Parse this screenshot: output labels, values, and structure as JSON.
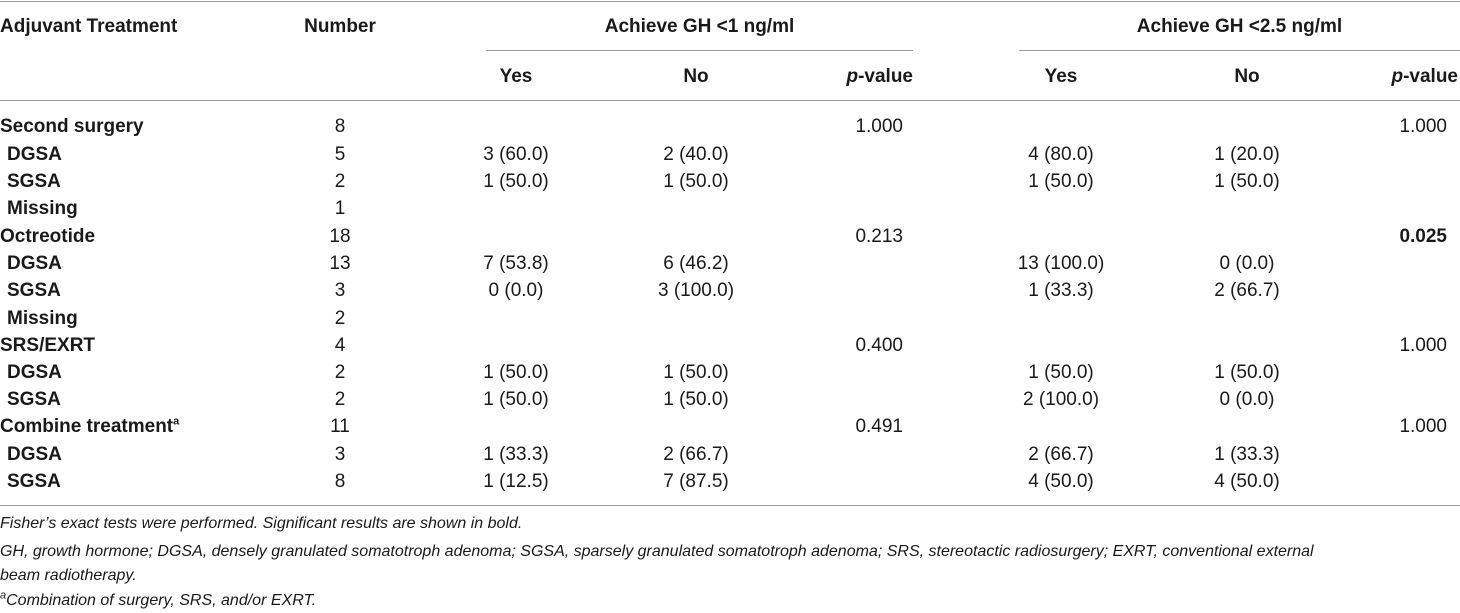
{
  "header": {
    "adjuvant_treatment": "Adjuvant Treatment",
    "number": "Number",
    "group1_title": "Achieve GH <1 ng/ml",
    "group2_title": "Achieve GH <2.5 ng/ml",
    "yes": "Yes",
    "no": "No",
    "p_prefix": "p",
    "p_suffix": "-value"
  },
  "rows": [
    {
      "label": "Second surgery",
      "number": "8",
      "yes1": "",
      "no1": "",
      "p1": "1.000",
      "yes2": "",
      "no2": "",
      "p2": "1.000"
    },
    {
      "label": "DGSA",
      "number": "5",
      "yes1": "3 (60.0)",
      "no1": "2 (40.0)",
      "p1": "",
      "yes2": "4 (80.0)",
      "no2": "1 (20.0)",
      "p2": ""
    },
    {
      "label": "SGSA",
      "number": "2",
      "yes1": "1 (50.0)",
      "no1": "1 (50.0)",
      "p1": "",
      "yes2": "1 (50.0)",
      "no2": "1 (50.0)",
      "p2": ""
    },
    {
      "label": "Missing",
      "number": "1",
      "yes1": "",
      "no1": "",
      "p1": "",
      "yes2": "",
      "no2": "",
      "p2": ""
    },
    {
      "label": "Octreotide",
      "number": "18",
      "yes1": "",
      "no1": "",
      "p1": "0.213",
      "yes2": "",
      "no2": "",
      "p2": "0.025"
    },
    {
      "label": "DGSA",
      "number": "13",
      "yes1": "7 (53.8)",
      "no1": "6 (46.2)",
      "p1": "",
      "yes2": "13 (100.0)",
      "no2": "0 (0.0)",
      "p2": ""
    },
    {
      "label": "SGSA",
      "number": "3",
      "yes1": "0 (0.0)",
      "no1": "3 (100.0)",
      "p1": "",
      "yes2": "1 (33.3)",
      "no2": "2 (66.7)",
      "p2": ""
    },
    {
      "label": "Missing",
      "number": "2",
      "yes1": "",
      "no1": "",
      "p1": "",
      "yes2": "",
      "no2": "",
      "p2": ""
    },
    {
      "label": "SRS/EXRT",
      "number": "4",
      "yes1": "",
      "no1": "",
      "p1": "0.400",
      "yes2": "",
      "no2": "",
      "p2": "1.000"
    },
    {
      "label": "DGSA",
      "number": "2",
      "yes1": "1 (50.0)",
      "no1": "1 (50.0)",
      "p1": "",
      "yes2": "1 (50.0)",
      "no2": "1 (50.0)",
      "p2": ""
    },
    {
      "label": "SGSA",
      "number": "2",
      "yes1": "1 (50.0)",
      "no1": "1 (50.0)",
      "p1": "",
      "yes2": "2 (100.0)",
      "no2": "0 (0.0)",
      "p2": ""
    },
    {
      "label": "Combine treatment",
      "label_sup": "a",
      "number": "11",
      "yes1": "",
      "no1": "",
      "p1": "0.491",
      "yes2": "",
      "no2": "",
      "p2": "1.000"
    },
    {
      "label": "DGSA",
      "number": "3",
      "yes1": "1 (33.3)",
      "no1": "2 (66.7)",
      "p1": "",
      "yes2": "2 (66.7)",
      "no2": "1 (33.3)",
      "p2": ""
    },
    {
      "label": "SGSA",
      "number": "8",
      "yes1": "1 (12.5)",
      "no1": "7 (87.5)",
      "p1": "",
      "yes2": "4 (50.0)",
      "no2": "4 (50.0)",
      "p2": ""
    }
  ],
  "footnotes": {
    "line1": "Fisher’s exact tests were performed. Significant results are shown in bold.",
    "line2": "GH, growth hormone; DGSA, densely granulated somatotroph adenoma; SGSA, sparsely granulated somatotroph adenoma; SRS, stereotactic radiosurgery; EXRT, conventional external",
    "line3": "beam radiotherapy.",
    "line4_sup": "a",
    "line4": "Combination of surgery, SRS, and/or EXRT."
  }
}
